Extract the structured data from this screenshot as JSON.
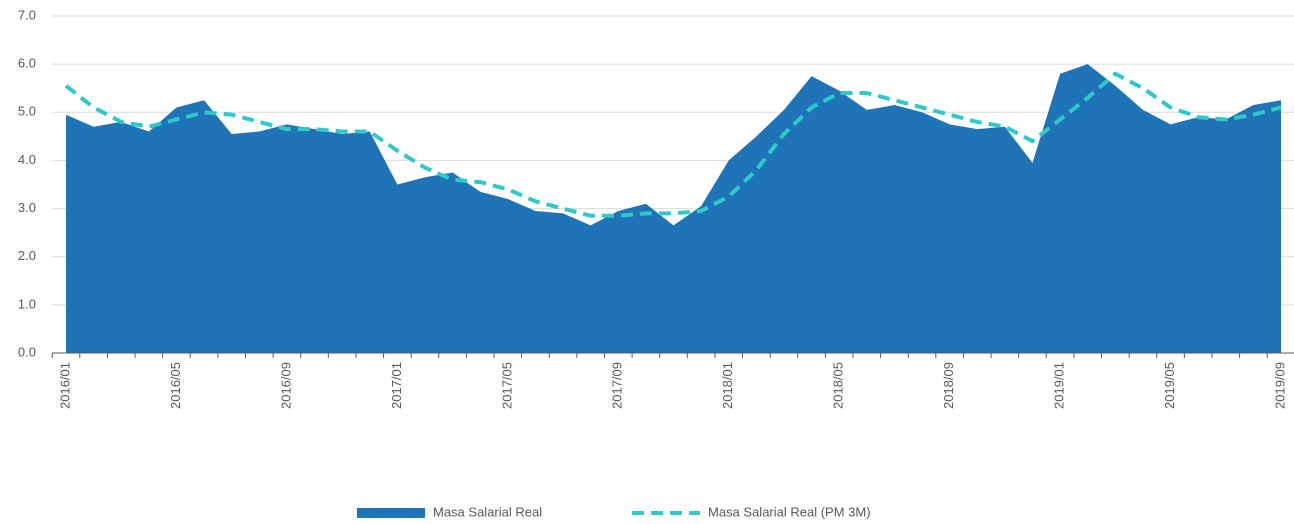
{
  "chart_data": {
    "type": "area_line",
    "categories": [
      "2016/01",
      null,
      null,
      null,
      "2016/05",
      null,
      null,
      null,
      "2016/09",
      null,
      null,
      null,
      "2017/01",
      null,
      null,
      null,
      "2017/05",
      null,
      null,
      null,
      "2017/09",
      null,
      null,
      null,
      "2018/01",
      null,
      null,
      null,
      "2018/05",
      null,
      null,
      null,
      "2018/09",
      null,
      null,
      null,
      "2019/01",
      null,
      null,
      null,
      "2019/05",
      null,
      null,
      null,
      "2019/09"
    ],
    "series": [
      {
        "name": "Masa Salarial Real",
        "type": "area",
        "color": "#1f74b8",
        "values": [
          4.95,
          4.7,
          4.8,
          4.6,
          5.1,
          5.25,
          4.55,
          4.6,
          4.75,
          4.65,
          4.55,
          4.6,
          3.5,
          3.65,
          3.75,
          3.35,
          3.2,
          2.95,
          2.9,
          2.65,
          2.95,
          3.1,
          2.65,
          3.05,
          4.0,
          4.5,
          5.05,
          5.75,
          5.45,
          5.05,
          5.15,
          5.0,
          4.75,
          4.65,
          4.7,
          3.95,
          5.8,
          6.0,
          5.55,
          5.05,
          4.75,
          4.9,
          4.85,
          5.15,
          5.25
        ]
      },
      {
        "name": "Masa Salarial Real (PM 3M)",
        "type": "line",
        "dashed": true,
        "color": "#2ec9c9",
        "values": [
          5.55,
          5.1,
          4.8,
          4.7,
          4.85,
          5.0,
          4.95,
          4.8,
          4.65,
          4.65,
          4.6,
          4.6,
          4.2,
          3.85,
          3.6,
          3.55,
          3.4,
          3.15,
          3.0,
          2.85,
          2.85,
          2.9,
          2.9,
          2.95,
          3.25,
          3.8,
          4.55,
          5.1,
          5.4,
          5.4,
          5.25,
          5.1,
          4.95,
          4.8,
          4.7,
          4.4,
          4.85,
          5.3,
          5.8,
          5.5,
          5.1,
          4.9,
          4.85,
          4.95,
          5.1
        ]
      }
    ],
    "ylim": [
      0,
      7
    ],
    "yticks": [
      {
        "value": 0,
        "label": "0.0"
      },
      {
        "value": 1,
        "label": "1.0"
      },
      {
        "value": 2,
        "label": "2.0"
      },
      {
        "value": 3,
        "label": "3.0"
      },
      {
        "value": 4,
        "label": "4.0"
      },
      {
        "value": 5,
        "label": "5.0"
      },
      {
        "value": 6,
        "label": "6.0"
      },
      {
        "value": 7,
        "label": "7.0"
      }
    ],
    "grid": true,
    "legend": "bottom"
  }
}
